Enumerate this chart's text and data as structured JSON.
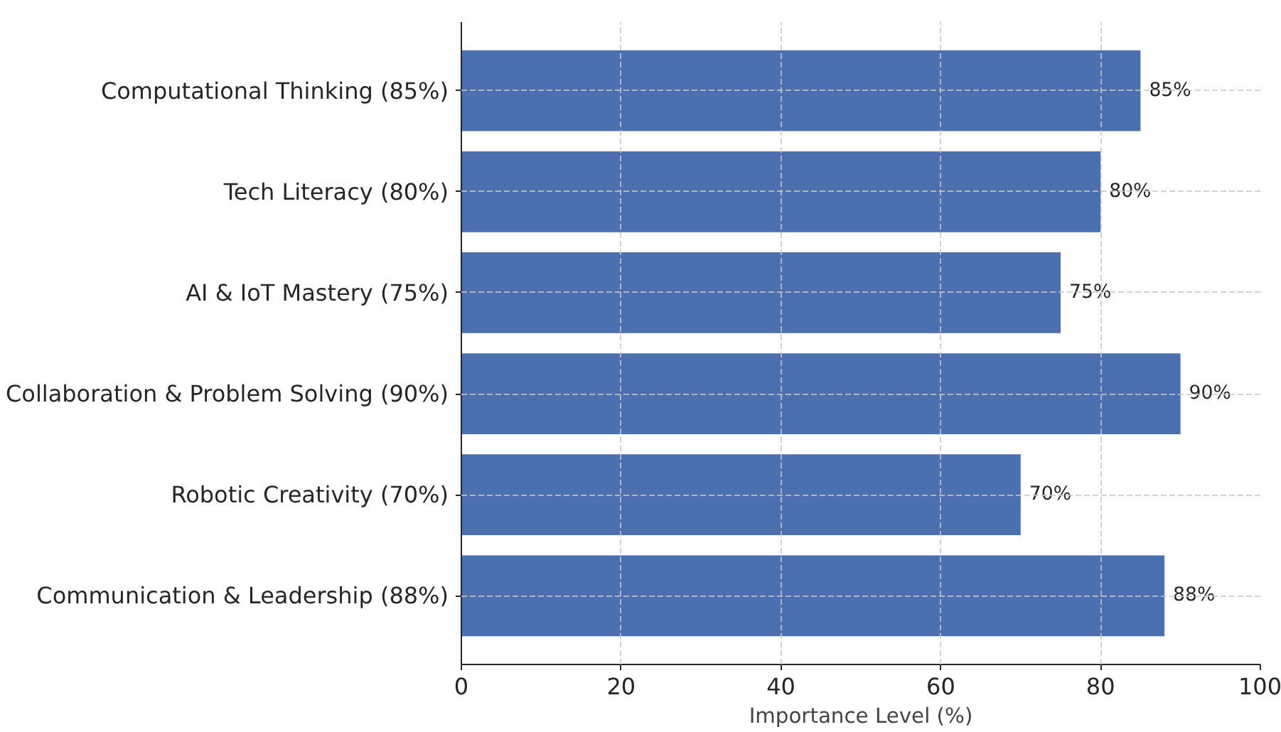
{
  "chart_data": {
    "type": "bar",
    "orientation": "horizontal",
    "xlabel": "Importance Level (%)",
    "categories": [
      "Computational Thinking (85%)",
      "Tech Literacy (80%)",
      "AI & IoT Mastery (75%)",
      "Collaboration & Problem Solving (90%)",
      "Robotic Creativity (70%)",
      "Communication & Leadership (88%)"
    ],
    "values": [
      85,
      80,
      75,
      90,
      70,
      88
    ],
    "value_labels": [
      "85%",
      "80%",
      "75%",
      "90%",
      "70%",
      "88%"
    ],
    "color": "#4c6fb0",
    "xlim": [
      0,
      100
    ],
    "xticks": [
      0,
      20,
      40,
      60,
      80,
      100
    ],
    "grid": true
  }
}
